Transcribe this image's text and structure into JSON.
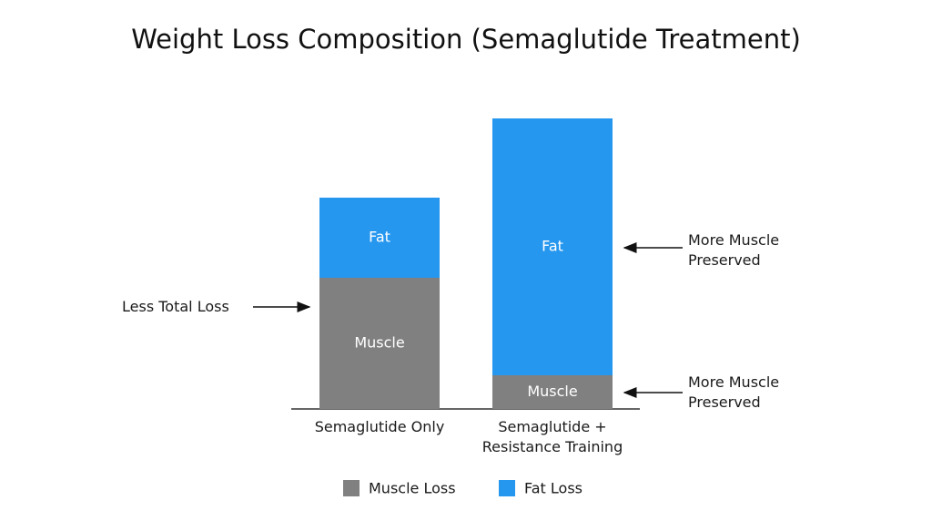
{
  "chart_data": {
    "type": "stacked-bar",
    "title": "Weight Loss Composition (Semaglutide Treatment)",
    "categories": [
      "Semaglutide Only",
      "Semaglutide + Resistance Training"
    ],
    "series": [
      {
        "name": "Muscle",
        "legend": "Muscle Loss",
        "color": "#808080",
        "values": [
          144,
          37
        ]
      },
      {
        "name": "Fat",
        "legend": "Fat Loss",
        "color": "#2697ef",
        "values": [
          88,
          282
        ]
      }
    ],
    "annotations": [
      "Less Total Loss",
      "More Muscle Preserved",
      "More Muscle Preserved"
    ]
  }
}
